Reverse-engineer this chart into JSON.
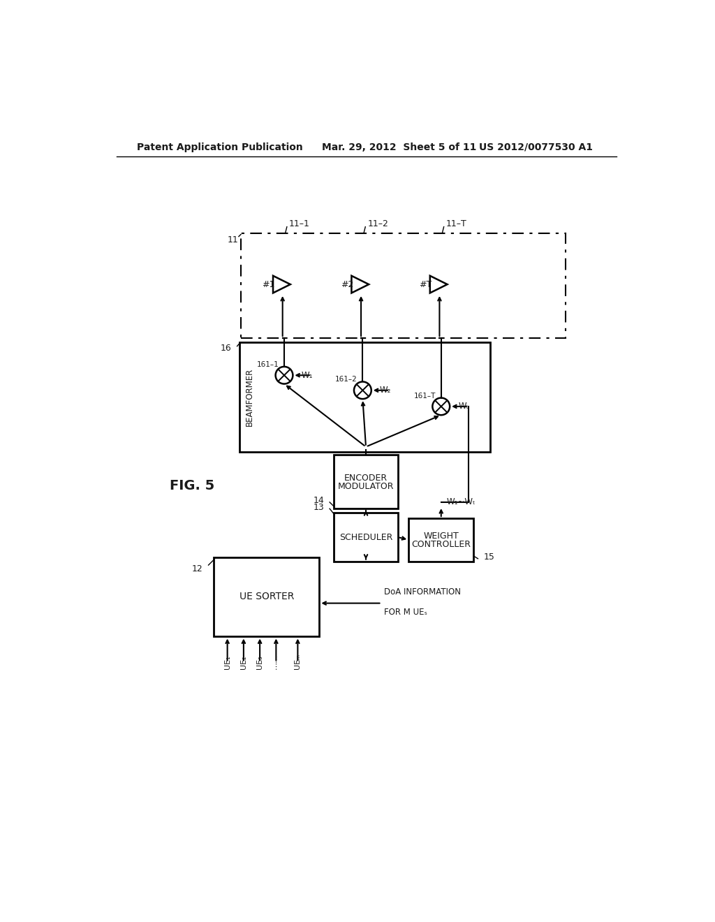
{
  "bg_color": "#ffffff",
  "header_left": "Patent Application Publication",
  "header_center": "Mar. 29, 2012  Sheet 5 of 11",
  "header_right": "US 2012/0077530 A1",
  "fig_label": "FIG. 5",
  "text_color": "#1a1a1a"
}
